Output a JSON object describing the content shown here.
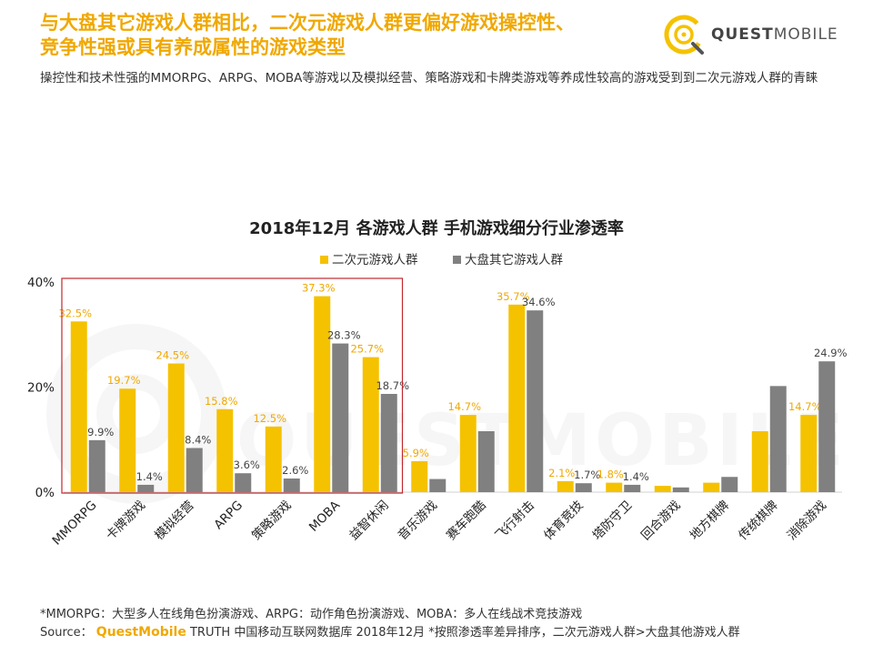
{
  "header": {
    "headline_line1": "与大盘其它游戏人群相比，二次元游戏人群更偏好游戏操控性、",
    "headline_line2": "竞争性强或具有养成属性的游戏类型",
    "subtitle": "操控性和技术性强的MMORPG、ARPG、MOBA等游戏以及模拟经营、策略游戏和卡牌类游戏等养成性较高的游戏受到到二次元游戏人群的青睐"
  },
  "logo": {
    "text_strong": "QUEST",
    "text_light": "MOBILE",
    "icon": "questmobile-logo-icon"
  },
  "watermark": "QUESTMOBILE",
  "colors": {
    "series1": "#f5c200",
    "series2": "#808080",
    "accent": "#f0a800",
    "highlight_box": "#c0282d"
  },
  "chart_data": {
    "type": "bar",
    "title": "2018年12月 各游戏人群 手机游戏细分行业渗透率",
    "categories": [
      "MMORPG",
      "卡牌游戏",
      "模拟经营",
      "ARPG",
      "策略游戏",
      "MOBA",
      "益智休闲",
      "音乐游戏",
      "赛车跑酷",
      "飞行射击",
      "体育竞技",
      "塔防守卫",
      "回合游戏",
      "地方棋牌",
      "传统棋牌",
      "消除游戏"
    ],
    "series": [
      {
        "name": "二次元游戏人群",
        "values": [
          32.5,
          19.7,
          24.5,
          15.8,
          12.5,
          37.3,
          25.7,
          5.9,
          14.7,
          35.7,
          2.1,
          1.8,
          1.2,
          1.8,
          11.6,
          14.7
        ],
        "labels": [
          "32.5%",
          "19.7%",
          "24.5%",
          "15.8%",
          "12.5%",
          "37.3%",
          "25.7%",
          "5.9%",
          "14.7%",
          "35.7%",
          "2.1%",
          "1.8%",
          "",
          "",
          "",
          "14.7%"
        ]
      },
      {
        "name": "大盘其它游戏人群",
        "values": [
          9.9,
          1.4,
          8.4,
          3.6,
          2.6,
          28.3,
          18.7,
          2.5,
          11.6,
          34.6,
          1.7,
          1.4,
          0.9,
          2.9,
          20.2,
          24.9
        ],
        "labels": [
          "9.9%",
          "1.4%",
          "8.4%",
          "3.6%",
          "2.6%",
          "28.3%",
          "18.7%",
          "",
          "",
          "34.6%",
          "1.7%",
          "1.4%",
          "",
          "",
          "",
          "24.9%"
        ]
      }
    ],
    "yticks": [
      "0%",
      "20%",
      "40%"
    ],
    "ylim": [
      0,
      40
    ],
    "legend_position": "top",
    "highlight_range": [
      "MMORPG",
      "益智休闲"
    ]
  },
  "footer": {
    "footnote": "*MMORPG：大型多人在线角色扮演游戏、ARPG：动作角色扮演游戏、MOBA：多人在线战术竞技游戏",
    "source_prefix": "Source：",
    "source_brand": "QuestMobile",
    "source_rest": " TRUTH 中国移动互联网数据库 2018年12月  *按照渗透率差异排序，二次元游戏人群>大盘其他游戏人群"
  }
}
